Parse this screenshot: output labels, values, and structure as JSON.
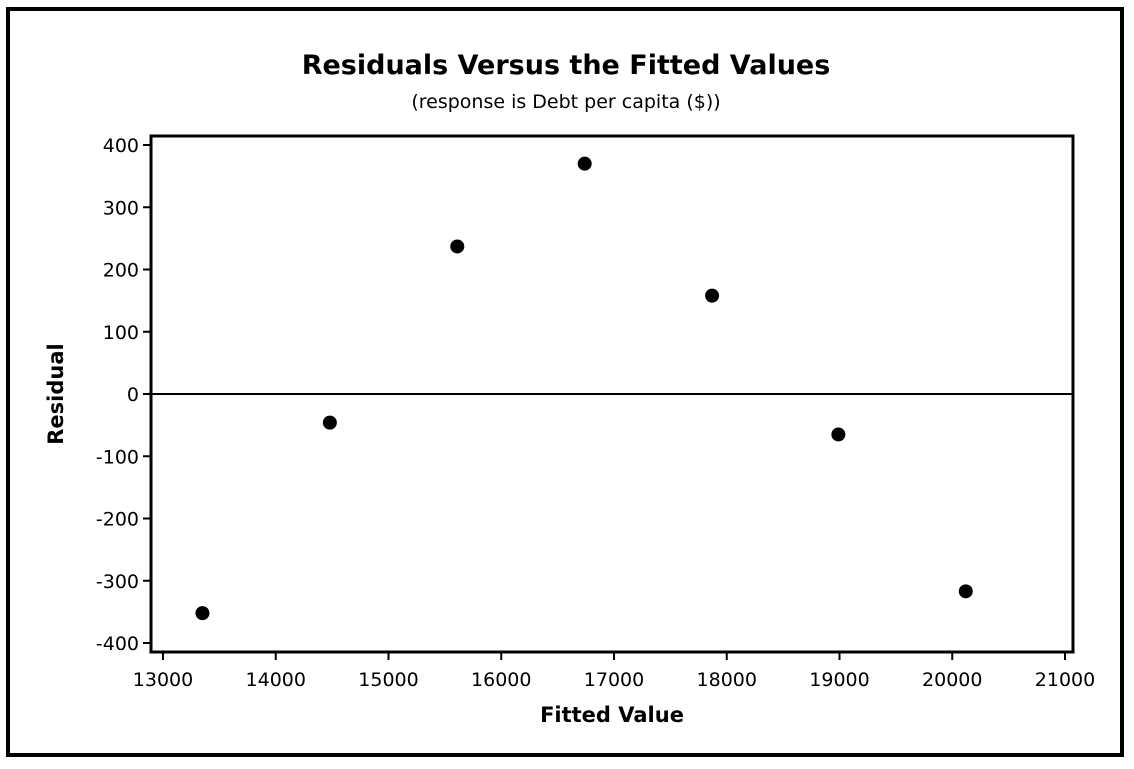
{
  "chart_data": {
    "type": "scatter",
    "title": "Residuals Versus the Fitted Values",
    "subtitle": "(response is Debt per capita ($))",
    "xlabel": "Fitted Value",
    "ylabel": "Residual",
    "xlim": [
      13000,
      21000
    ],
    "ylim": [
      -400,
      400
    ],
    "x_ticks": [
      13000,
      14000,
      15000,
      16000,
      17000,
      18000,
      19000,
      20000,
      21000
    ],
    "y_ticks": [
      400,
      300,
      200,
      100,
      0,
      -100,
      -200,
      -300,
      -400
    ],
    "x_tick_labels": [
      "13000",
      "14000",
      "15000",
      "16000",
      "17000",
      "18000",
      "19000",
      "20000",
      "21000"
    ],
    "y_tick_labels": [
      "400",
      "300",
      "200",
      "100",
      "0",
      "-100",
      "-200",
      "-300",
      "-400"
    ],
    "reference_line_y": 0,
    "grid": false,
    "marker_color": "#000000",
    "points": [
      {
        "x": 13350,
        "y": -352
      },
      {
        "x": 14480,
        "y": -46
      },
      {
        "x": 15610,
        "y": 237
      },
      {
        "x": 16740,
        "y": 370
      },
      {
        "x": 17870,
        "y": 158
      },
      {
        "x": 18990,
        "y": -65
      },
      {
        "x": 20120,
        "y": -317
      }
    ]
  }
}
